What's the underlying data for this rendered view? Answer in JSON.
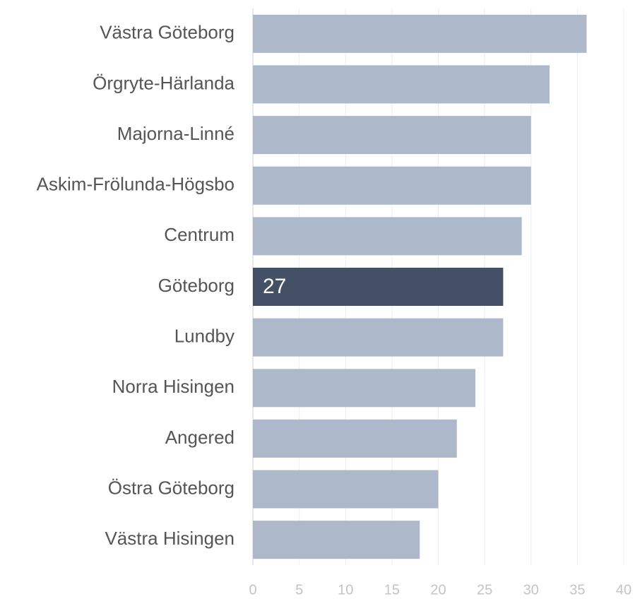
{
  "chart_data": {
    "type": "bar",
    "orientation": "horizontal",
    "categories": [
      "Västra Göteborg",
      "Örgryte-Härlanda",
      "Majorna-Linné",
      "Askim-Frölunda-Högsbo",
      "Centrum",
      "Göteborg",
      "Lundby",
      "Norra Hisingen",
      "Angered",
      "Östra Göteborg",
      "Västra Hisingen"
    ],
    "values": [
      36,
      32,
      30,
      30,
      29,
      27,
      27,
      24,
      22,
      20,
      18
    ],
    "color": "#adb8ca",
    "highlight": {
      "index": 5,
      "color": "#435066"
    },
    "xlim": [
      0,
      40
    ],
    "xticks": [
      0,
      5,
      10,
      15,
      20,
      25,
      30,
      35,
      40
    ],
    "grid": true
  }
}
